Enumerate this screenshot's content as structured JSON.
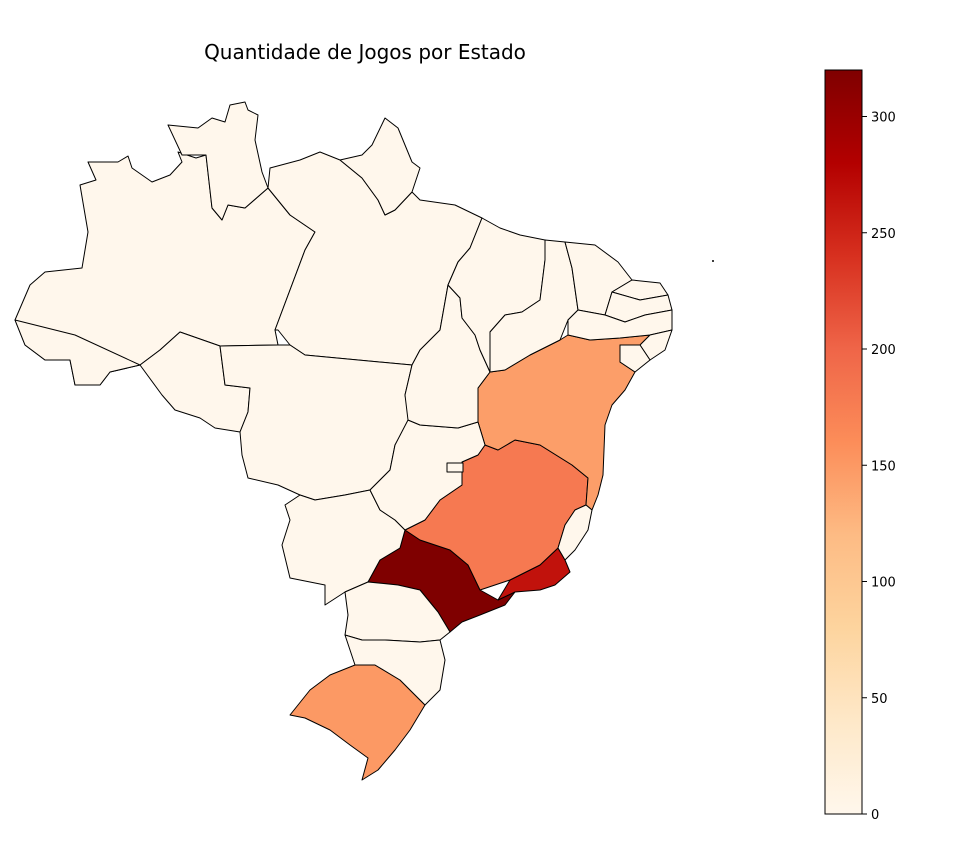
{
  "title": "Quantidade de Jogos por Estado",
  "colormap": {
    "name": "OrRd",
    "stops": [
      "#fff7ec",
      "#fee8c8",
      "#fdd49e",
      "#fdbb84",
      "#fc8d59",
      "#ef6548",
      "#d7301f",
      "#b30000",
      "#7f0000"
    ],
    "min": 0,
    "max": 320,
    "ticks": [
      0,
      50,
      100,
      150,
      200,
      250,
      300
    ],
    "tick_labels": [
      "0",
      "50",
      "100",
      "150",
      "200",
      "250",
      "300"
    ]
  },
  "map": {
    "border_color": "#000000",
    "states": [
      {
        "name": "São Paulo",
        "value": 320
      },
      {
        "name": "Rio de Janeiro",
        "value": 265
      },
      {
        "name": "Minas Gerais",
        "value": 180
      },
      {
        "name": "Rio Grande do Sul",
        "value": 150
      },
      {
        "name": "Bahia",
        "value": 145
      },
      {
        "name": "Amazonas",
        "value": 0
      },
      {
        "name": "Pará",
        "value": 0
      },
      {
        "name": "Roraima",
        "value": 0
      },
      {
        "name": "Amapá",
        "value": 0
      },
      {
        "name": "Acre",
        "value": 0
      },
      {
        "name": "Rondônia",
        "value": 0
      },
      {
        "name": "Mato Grosso",
        "value": 0
      },
      {
        "name": "Mato Grosso do Sul",
        "value": 0
      },
      {
        "name": "Goiás",
        "value": 0
      },
      {
        "name": "Distrito Federal",
        "value": 0
      },
      {
        "name": "Tocantins",
        "value": 0
      },
      {
        "name": "Maranhão",
        "value": 0
      },
      {
        "name": "Piauí",
        "value": 0
      },
      {
        "name": "Ceará",
        "value": 0
      },
      {
        "name": "Rio Grande do Norte",
        "value": 0
      },
      {
        "name": "Paraíba",
        "value": 0
      },
      {
        "name": "Pernambuco",
        "value": 0
      },
      {
        "name": "Alagoas",
        "value": 0
      },
      {
        "name": "Sergipe",
        "value": 0
      },
      {
        "name": "Espírito Santo",
        "value": 0
      },
      {
        "name": "Paraná",
        "value": 0
      },
      {
        "name": "Santa Catarina",
        "value": 0
      }
    ]
  }
}
